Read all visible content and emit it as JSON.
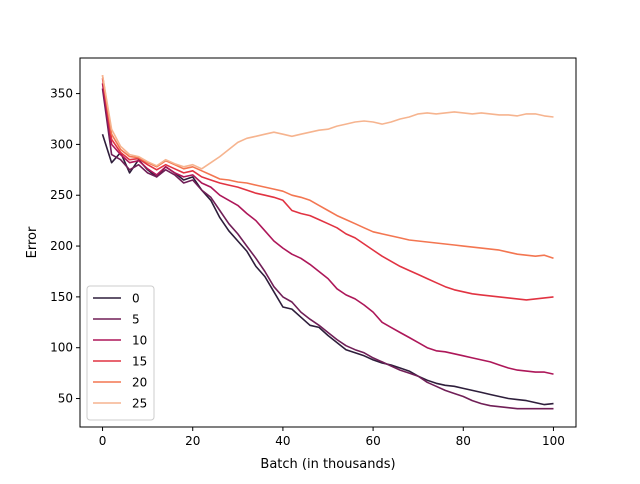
{
  "chart_data": {
    "type": "line",
    "xlabel": "Batch (in thousands)",
    "ylabel": "Error",
    "xlim": [
      -5,
      105
    ],
    "ylim": [
      22,
      385
    ],
    "xticks": [
      0,
      20,
      40,
      60,
      80,
      100
    ],
    "yticks": [
      50,
      100,
      150,
      200,
      250,
      300,
      350
    ],
    "legend_position": "lower-left",
    "grid": false,
    "series": [
      {
        "name": "0",
        "color": "#2e1e3b",
        "points": [
          [
            0,
            310
          ],
          [
            2,
            282
          ],
          [
            4,
            292
          ],
          [
            6,
            272
          ],
          [
            8,
            285
          ],
          [
            10,
            275
          ],
          [
            12,
            268
          ],
          [
            14,
            278
          ],
          [
            16,
            272
          ],
          [
            18,
            265
          ],
          [
            20,
            268
          ],
          [
            22,
            255
          ],
          [
            24,
            245
          ],
          [
            26,
            228
          ],
          [
            28,
            215
          ],
          [
            30,
            205
          ],
          [
            32,
            195
          ],
          [
            34,
            180
          ],
          [
            36,
            170
          ],
          [
            38,
            155
          ],
          [
            40,
            140
          ],
          [
            42,
            138
          ],
          [
            44,
            130
          ],
          [
            46,
            122
          ],
          [
            48,
            120
          ],
          [
            50,
            112
          ],
          [
            52,
            105
          ],
          [
            54,
            98
          ],
          [
            56,
            95
          ],
          [
            58,
            92
          ],
          [
            60,
            88
          ],
          [
            62,
            85
          ],
          [
            64,
            83
          ],
          [
            66,
            80
          ],
          [
            68,
            77
          ],
          [
            70,
            72
          ],
          [
            72,
            68
          ],
          [
            74,
            65
          ],
          [
            76,
            63
          ],
          [
            78,
            62
          ],
          [
            80,
            60
          ],
          [
            82,
            58
          ],
          [
            84,
            56
          ],
          [
            86,
            54
          ],
          [
            88,
            52
          ],
          [
            90,
            50
          ],
          [
            92,
            49
          ],
          [
            94,
            48
          ],
          [
            96,
            46
          ],
          [
            98,
            44
          ],
          [
            100,
            45
          ]
        ]
      },
      {
        "name": "5",
        "color": "#701f57",
        "points": [
          [
            0,
            355
          ],
          [
            2,
            290
          ],
          [
            4,
            285
          ],
          [
            6,
            275
          ],
          [
            8,
            280
          ],
          [
            10,
            272
          ],
          [
            12,
            268
          ],
          [
            14,
            275
          ],
          [
            16,
            270
          ],
          [
            18,
            262
          ],
          [
            20,
            265
          ],
          [
            22,
            255
          ],
          [
            24,
            248
          ],
          [
            26,
            235
          ],
          [
            28,
            222
          ],
          [
            30,
            212
          ],
          [
            32,
            200
          ],
          [
            34,
            188
          ],
          [
            36,
            175
          ],
          [
            38,
            160
          ],
          [
            40,
            150
          ],
          [
            42,
            145
          ],
          [
            44,
            135
          ],
          [
            46,
            128
          ],
          [
            48,
            122
          ],
          [
            50,
            115
          ],
          [
            52,
            108
          ],
          [
            54,
            102
          ],
          [
            56,
            98
          ],
          [
            58,
            95
          ],
          [
            60,
            90
          ],
          [
            62,
            86
          ],
          [
            64,
            82
          ],
          [
            66,
            78
          ],
          [
            68,
            75
          ],
          [
            70,
            72
          ],
          [
            72,
            66
          ],
          [
            74,
            62
          ],
          [
            76,
            58
          ],
          [
            78,
            55
          ],
          [
            80,
            52
          ],
          [
            82,
            48
          ],
          [
            84,
            45
          ],
          [
            86,
            43
          ],
          [
            88,
            42
          ],
          [
            90,
            41
          ],
          [
            92,
            40
          ],
          [
            94,
            40
          ],
          [
            96,
            40
          ],
          [
            98,
            40
          ],
          [
            100,
            40
          ]
        ]
      },
      {
        "name": "10",
        "color": "#ad1759",
        "points": [
          [
            0,
            360
          ],
          [
            2,
            300
          ],
          [
            4,
            290
          ],
          [
            6,
            282
          ],
          [
            8,
            284
          ],
          [
            10,
            276
          ],
          [
            12,
            270
          ],
          [
            14,
            278
          ],
          [
            16,
            272
          ],
          [
            18,
            268
          ],
          [
            20,
            270
          ],
          [
            22,
            262
          ],
          [
            24,
            258
          ],
          [
            26,
            250
          ],
          [
            28,
            245
          ],
          [
            30,
            240
          ],
          [
            32,
            232
          ],
          [
            34,
            225
          ],
          [
            36,
            215
          ],
          [
            38,
            205
          ],
          [
            40,
            198
          ],
          [
            42,
            192
          ],
          [
            44,
            188
          ],
          [
            46,
            182
          ],
          [
            48,
            175
          ],
          [
            50,
            168
          ],
          [
            52,
            158
          ],
          [
            54,
            152
          ],
          [
            56,
            148
          ],
          [
            58,
            142
          ],
          [
            60,
            135
          ],
          [
            62,
            125
          ],
          [
            64,
            120
          ],
          [
            66,
            115
          ],
          [
            68,
            110
          ],
          [
            70,
            105
          ],
          [
            72,
            100
          ],
          [
            74,
            97
          ],
          [
            76,
            96
          ],
          [
            78,
            94
          ],
          [
            80,
            92
          ],
          [
            82,
            90
          ],
          [
            84,
            88
          ],
          [
            86,
            86
          ],
          [
            88,
            83
          ],
          [
            90,
            80
          ],
          [
            92,
            78
          ],
          [
            94,
            77
          ],
          [
            96,
            76
          ],
          [
            98,
            76
          ],
          [
            100,
            74
          ]
        ]
      },
      {
        "name": "15",
        "color": "#e13342",
        "points": [
          [
            0,
            365
          ],
          [
            2,
            305
          ],
          [
            4,
            292
          ],
          [
            6,
            285
          ],
          [
            8,
            286
          ],
          [
            10,
            280
          ],
          [
            12,
            275
          ],
          [
            14,
            280
          ],
          [
            16,
            276
          ],
          [
            18,
            272
          ],
          [
            20,
            274
          ],
          [
            22,
            268
          ],
          [
            24,
            265
          ],
          [
            26,
            262
          ],
          [
            28,
            260
          ],
          [
            30,
            258
          ],
          [
            32,
            255
          ],
          [
            34,
            252
          ],
          [
            36,
            250
          ],
          [
            38,
            248
          ],
          [
            40,
            245
          ],
          [
            42,
            235
          ],
          [
            44,
            232
          ],
          [
            46,
            230
          ],
          [
            48,
            226
          ],
          [
            50,
            222
          ],
          [
            52,
            218
          ],
          [
            54,
            212
          ],
          [
            56,
            208
          ],
          [
            58,
            202
          ],
          [
            60,
            196
          ],
          [
            62,
            190
          ],
          [
            64,
            185
          ],
          [
            66,
            180
          ],
          [
            68,
            176
          ],
          [
            70,
            172
          ],
          [
            72,
            168
          ],
          [
            74,
            164
          ],
          [
            76,
            160
          ],
          [
            78,
            157
          ],
          [
            80,
            155
          ],
          [
            82,
            153
          ],
          [
            84,
            152
          ],
          [
            86,
            151
          ],
          [
            88,
            150
          ],
          [
            90,
            149
          ],
          [
            92,
            148
          ],
          [
            94,
            147
          ],
          [
            96,
            148
          ],
          [
            98,
            149
          ],
          [
            100,
            150
          ]
        ]
      },
      {
        "name": "20",
        "color": "#f37651",
        "points": [
          [
            0,
            368
          ],
          [
            2,
            310
          ],
          [
            4,
            295
          ],
          [
            6,
            288
          ],
          [
            8,
            287
          ],
          [
            10,
            282
          ],
          [
            12,
            278
          ],
          [
            14,
            284
          ],
          [
            16,
            280
          ],
          [
            18,
            276
          ],
          [
            20,
            278
          ],
          [
            22,
            274
          ],
          [
            24,
            270
          ],
          [
            26,
            266
          ],
          [
            28,
            265
          ],
          [
            30,
            263
          ],
          [
            32,
            262
          ],
          [
            34,
            260
          ],
          [
            36,
            258
          ],
          [
            38,
            256
          ],
          [
            40,
            254
          ],
          [
            42,
            250
          ],
          [
            44,
            248
          ],
          [
            46,
            245
          ],
          [
            48,
            240
          ],
          [
            50,
            235
          ],
          [
            52,
            230
          ],
          [
            54,
            226
          ],
          [
            56,
            222
          ],
          [
            58,
            218
          ],
          [
            60,
            214
          ],
          [
            62,
            212
          ],
          [
            64,
            210
          ],
          [
            66,
            208
          ],
          [
            68,
            206
          ],
          [
            70,
            205
          ],
          [
            72,
            204
          ],
          [
            74,
            203
          ],
          [
            76,
            202
          ],
          [
            78,
            201
          ],
          [
            80,
            200
          ],
          [
            82,
            199
          ],
          [
            84,
            198
          ],
          [
            86,
            197
          ],
          [
            88,
            196
          ],
          [
            90,
            194
          ],
          [
            92,
            192
          ],
          [
            94,
            191
          ],
          [
            96,
            190
          ],
          [
            98,
            191
          ],
          [
            100,
            188
          ]
        ]
      },
      {
        "name": "25",
        "color": "#f6b48f",
        "points": [
          [
            0,
            368
          ],
          [
            2,
            315
          ],
          [
            4,
            298
          ],
          [
            6,
            290
          ],
          [
            8,
            288
          ],
          [
            10,
            283
          ],
          [
            12,
            279
          ],
          [
            14,
            285
          ],
          [
            16,
            281
          ],
          [
            18,
            278
          ],
          [
            20,
            280
          ],
          [
            22,
            276
          ],
          [
            24,
            282
          ],
          [
            26,
            288
          ],
          [
            28,
            295
          ],
          [
            30,
            302
          ],
          [
            32,
            306
          ],
          [
            34,
            308
          ],
          [
            36,
            310
          ],
          [
            38,
            312
          ],
          [
            40,
            310
          ],
          [
            42,
            308
          ],
          [
            44,
            310
          ],
          [
            46,
            312
          ],
          [
            48,
            314
          ],
          [
            50,
            315
          ],
          [
            52,
            318
          ],
          [
            54,
            320
          ],
          [
            56,
            322
          ],
          [
            58,
            323
          ],
          [
            60,
            322
          ],
          [
            62,
            320
          ],
          [
            64,
            322
          ],
          [
            66,
            325
          ],
          [
            68,
            327
          ],
          [
            70,
            330
          ],
          [
            72,
            331
          ],
          [
            74,
            330
          ],
          [
            76,
            331
          ],
          [
            78,
            332
          ],
          [
            80,
            331
          ],
          [
            82,
            330
          ],
          [
            84,
            331
          ],
          [
            86,
            330
          ],
          [
            88,
            329
          ],
          [
            90,
            329
          ],
          [
            92,
            328
          ],
          [
            94,
            330
          ],
          [
            96,
            330
          ],
          [
            98,
            328
          ],
          [
            100,
            327
          ]
        ]
      }
    ]
  }
}
